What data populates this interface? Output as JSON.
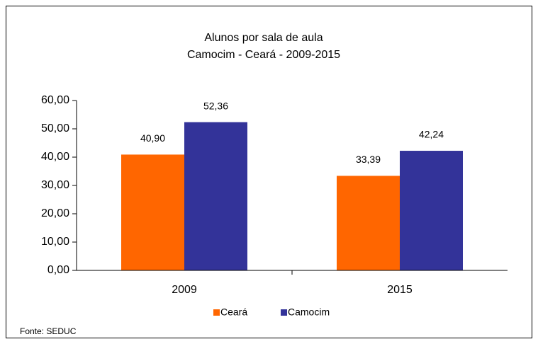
{
  "chart_data": {
    "type": "bar",
    "title": "Alunos por sala de aula",
    "subtitle": "Camocim - Ceará - 2009-2015",
    "categories": [
      "2009",
      "2015"
    ],
    "series": [
      {
        "name": "Ceará",
        "color": "#ff6600",
        "values": [
          40.9,
          33.39
        ],
        "value_labels": [
          "40,90",
          "33,39"
        ]
      },
      {
        "name": "Camocim",
        "color": "#333399",
        "values": [
          52.36,
          42.24
        ],
        "value_labels": [
          "52,36",
          "42,24"
        ]
      }
    ],
    "ylim": [
      0,
      60
    ],
    "yticks": [
      {
        "value": 0,
        "label": "0,00"
      },
      {
        "value": 10,
        "label": "10,00"
      },
      {
        "value": 20,
        "label": "20,00"
      },
      {
        "value": 30,
        "label": "30,00"
      },
      {
        "value": 40,
        "label": "40,00"
      },
      {
        "value": 50,
        "label": "50,00"
      },
      {
        "value": 60,
        "label": "60,00"
      }
    ],
    "source": "Fonte: SEDUC"
  }
}
